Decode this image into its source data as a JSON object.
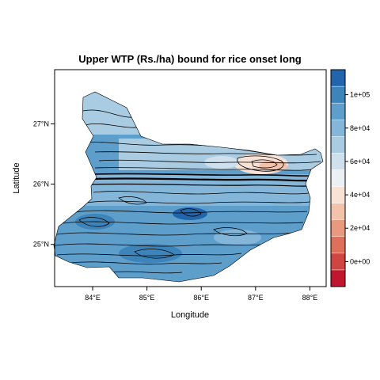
{
  "chart_data": {
    "type": "heatmap",
    "title": "Upper WTP (Rs./ha) bound for rice onset long",
    "xlabel": "Longitude",
    "ylabel": "Latitude",
    "xlim": [
      83.3,
      88.3
    ],
    "ylim": [
      24.3,
      27.9
    ],
    "x_ticks": [
      {
        "value": 84,
        "label": "84°E"
      },
      {
        "value": 85,
        "label": "85°E"
      },
      {
        "value": 86,
        "label": "86°E"
      },
      {
        "value": 87,
        "label": "87°E"
      },
      {
        "value": 88,
        "label": "88°E"
      }
    ],
    "y_ticks": [
      {
        "value": 25,
        "label": "25°N"
      },
      {
        "value": 26,
        "label": "26°N"
      },
      {
        "value": 27,
        "label": "27°N"
      }
    ],
    "colorbar": {
      "min": -15000,
      "max": 115000,
      "bins": 13,
      "colors": [
        "#c0162f",
        "#d0453f",
        "#de7059",
        "#e99a7e",
        "#f2c2ab",
        "#f8e2d6",
        "#eaf0f4",
        "#cde0ec",
        "#a9cce3",
        "#83b6d8",
        "#5e9ecb",
        "#3d84bb",
        "#2166ac"
      ],
      "ticks": [
        {
          "value": 0,
          "label": "0e+00"
        },
        {
          "value": 20000,
          "label": "2e+04"
        },
        {
          "value": 40000,
          "label": "4e+04"
        },
        {
          "value": 60000,
          "label": "6e+04"
        },
        {
          "value": 80000,
          "label": "8e+04"
        },
        {
          "value": 100000,
          "label": "1e+05"
        }
      ]
    },
    "field_summary": {
      "north_plain_value": 72000,
      "northeast_value": 50000,
      "central_band_value": 88000,
      "south_value": 95000
    }
  }
}
